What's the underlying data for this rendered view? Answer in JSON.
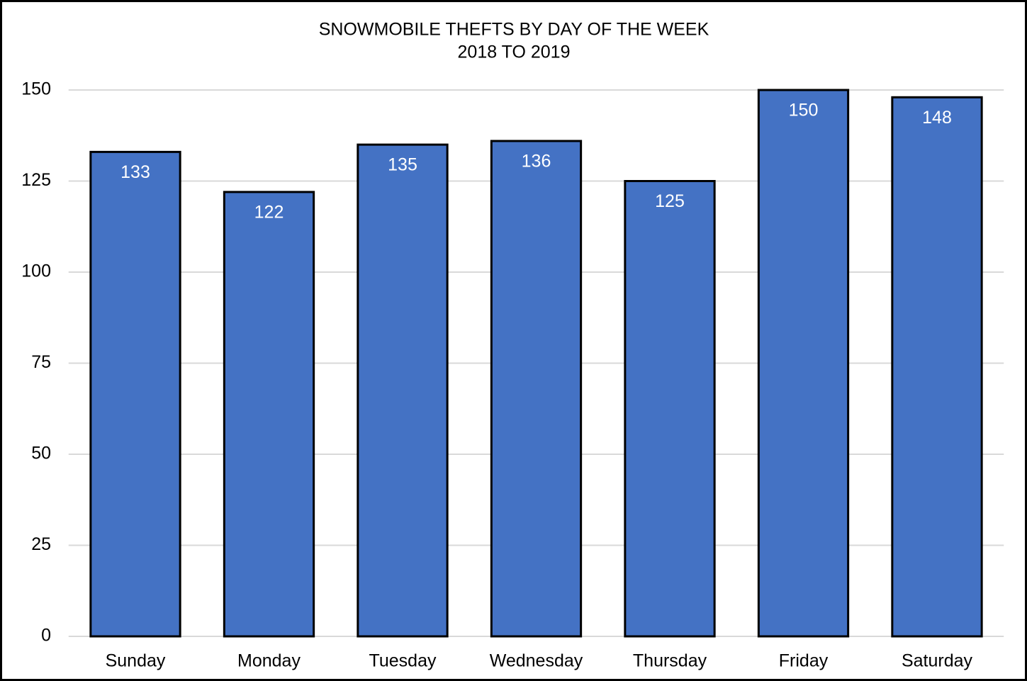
{
  "chart_data": {
    "type": "bar",
    "title": "SNOWMOBILE THEFTS BY DAY OF THE WEEK",
    "subtitle": "2018 TO 2019",
    "categories": [
      "Sunday",
      "Monday",
      "Tuesday",
      "Wednesday",
      "Thursday",
      "Friday",
      "Saturday"
    ],
    "values": [
      133,
      122,
      135,
      136,
      125,
      150,
      148
    ],
    "color": "#4472c4",
    "ylim": [
      0,
      150
    ],
    "yticks": [
      0,
      25,
      50,
      75,
      100,
      125,
      150
    ],
    "grid": true
  }
}
